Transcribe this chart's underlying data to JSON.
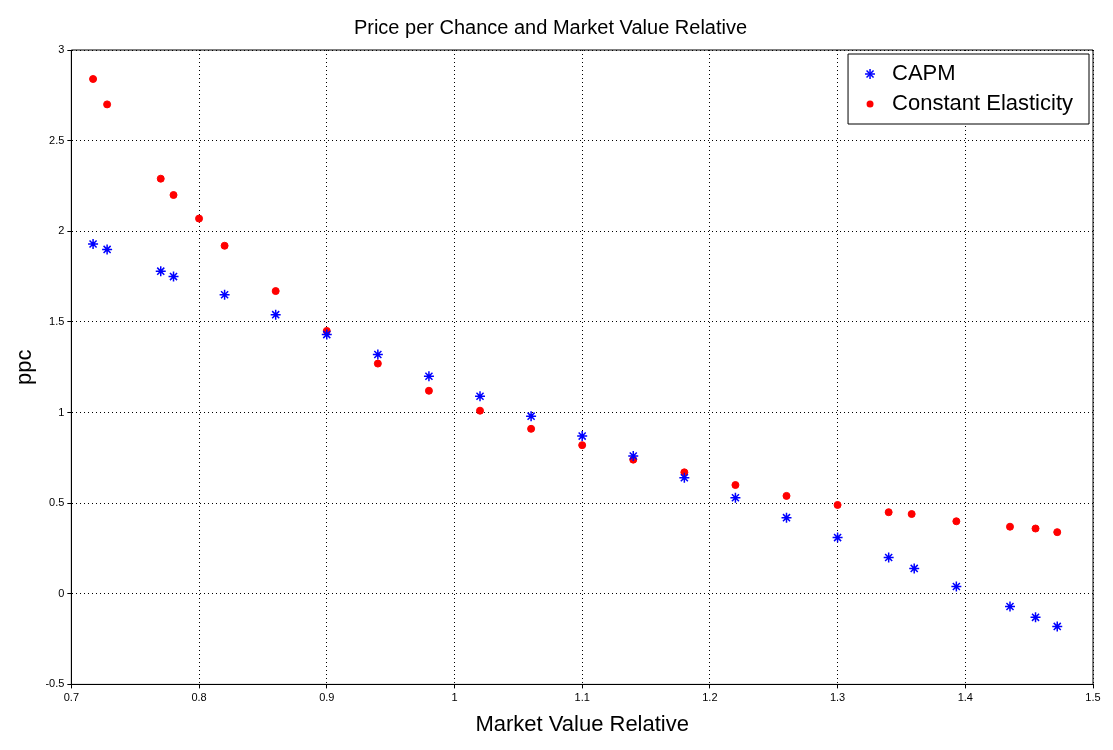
{
  "chart_data": {
    "type": "scatter",
    "title": "Price per Chance and Market Value Relative",
    "xlabel": "Market Value Relative",
    "ylabel": "ppc",
    "xlim": [
      0.7,
      1.5
    ],
    "xticks": [
      0.7,
      0.8,
      0.9,
      1,
      1.1,
      1.2,
      1.3,
      1.4,
      1.5
    ],
    "ylim": [
      -0.5,
      3
    ],
    "yticks": [
      -0.5,
      0,
      0.5,
      1,
      1.5,
      2,
      2.5,
      3
    ],
    "grid": true,
    "legend": "top right",
    "series": [
      {
        "name": "CAPM",
        "color": "#0000ff",
        "marker": "cross",
        "x": [
          0.717,
          0.728,
          0.77,
          0.78,
          0.82,
          0.86,
          0.9,
          0.94,
          0.98,
          1.02,
          1.06,
          1.1,
          1.14,
          1.18,
          1.22,
          1.26,
          1.3,
          1.34,
          1.36,
          1.393,
          1.435,
          1.455,
          1.472
        ],
        "values": [
          1.93,
          1.9,
          1.78,
          1.75,
          1.65,
          1.54,
          1.43,
          1.32,
          1.2,
          1.09,
          0.98,
          0.87,
          0.76,
          0.64,
          0.53,
          0.42,
          0.31,
          0.2,
          0.14,
          0.04,
          -0.07,
          -0.13,
          -0.18
        ]
      },
      {
        "name": "Constant Elasticity",
        "color": "#ff0000",
        "marker": "circle",
        "x": [
          0.717,
          0.728,
          0.77,
          0.78,
          0.8,
          0.82,
          0.86,
          0.9,
          0.94,
          0.98,
          1.02,
          1.06,
          1.1,
          1.14,
          1.18,
          1.22,
          1.26,
          1.3,
          1.34,
          1.358,
          1.393,
          1.435,
          1.455,
          1.472
        ],
        "values": [
          2.84,
          2.7,
          2.29,
          2.2,
          2.07,
          1.92,
          1.67,
          1.45,
          1.27,
          1.12,
          1.01,
          0.91,
          0.82,
          0.74,
          0.67,
          0.6,
          0.54,
          0.49,
          0.45,
          0.44,
          0.4,
          0.37,
          0.36,
          0.34
        ]
      }
    ]
  }
}
